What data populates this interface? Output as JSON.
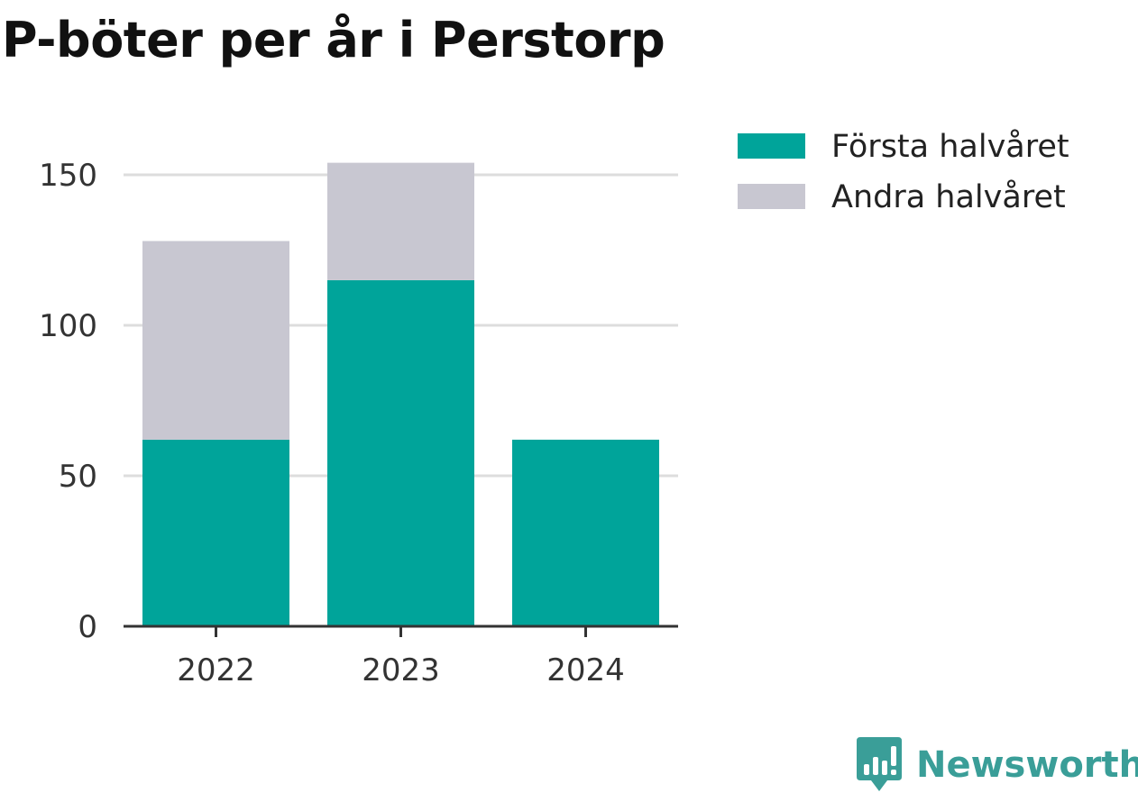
{
  "colors": {
    "first_half": "#00a49a",
    "second_half": "#c8c7d1",
    "grid": "#dddddd",
    "axis": "#333333",
    "brand": "#3a9e98"
  },
  "brand": {
    "name": "Newsworthy",
    "icon": "newsworthy-logo-icon"
  },
  "chart_data": {
    "type": "bar",
    "stacked": true,
    "title": "P-böter per år i Perstorp",
    "categories": [
      "2022",
      "2023",
      "2024"
    ],
    "series": [
      {
        "name": "Första halvåret",
        "values": [
          62,
          115,
          62
        ]
      },
      {
        "name": "Andra halvåret",
        "values": [
          66,
          39,
          0
        ]
      }
    ],
    "ylim": [
      0,
      160
    ],
    "yticks": [
      0,
      50,
      100,
      150
    ],
    "grid": true,
    "legend": "top-right"
  }
}
